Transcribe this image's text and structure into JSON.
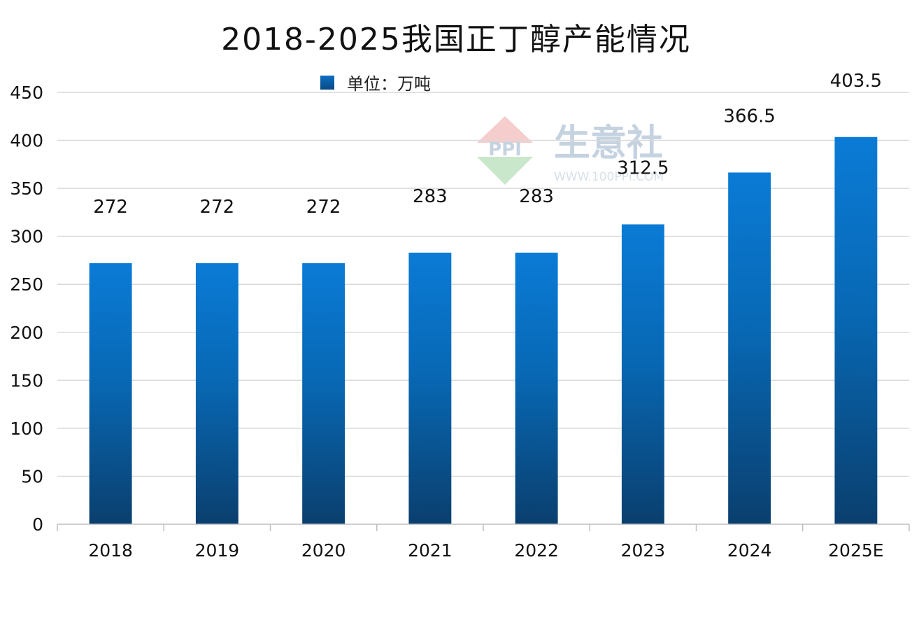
{
  "chart_data": {
    "type": "bar",
    "title": "2018-2025我国正丁醇产能情况",
    "categories": [
      "2018",
      "2019",
      "2020",
      "2021",
      "2022",
      "2023",
      "2024",
      "2025E"
    ],
    "series": [
      {
        "name": "单位：万吨",
        "values": [
          272,
          272,
          272,
          283,
          283,
          312.5,
          366.5,
          403.5
        ]
      }
    ],
    "data_labels": [
      "272",
      "272",
      "272",
      "283",
      "283",
      "312.5",
      "366.5",
      "403.5"
    ],
    "yticks": [
      0,
      50,
      100,
      150,
      200,
      250,
      300,
      350,
      400,
      450
    ],
    "ylim": [
      0,
      450
    ],
    "xlabel": "",
    "ylabel": "",
    "grid": true,
    "legend_position": "top",
    "colors": {
      "bar_top": "#0a7bd6",
      "bar_bottom": "#0a3f6e",
      "grid": "#d9d9d9",
      "axis": "#bfbfbf"
    }
  },
  "watermark": {
    "brand": "生意社",
    "logo": "PPI",
    "url": "WWW.100PPI.COM"
  }
}
